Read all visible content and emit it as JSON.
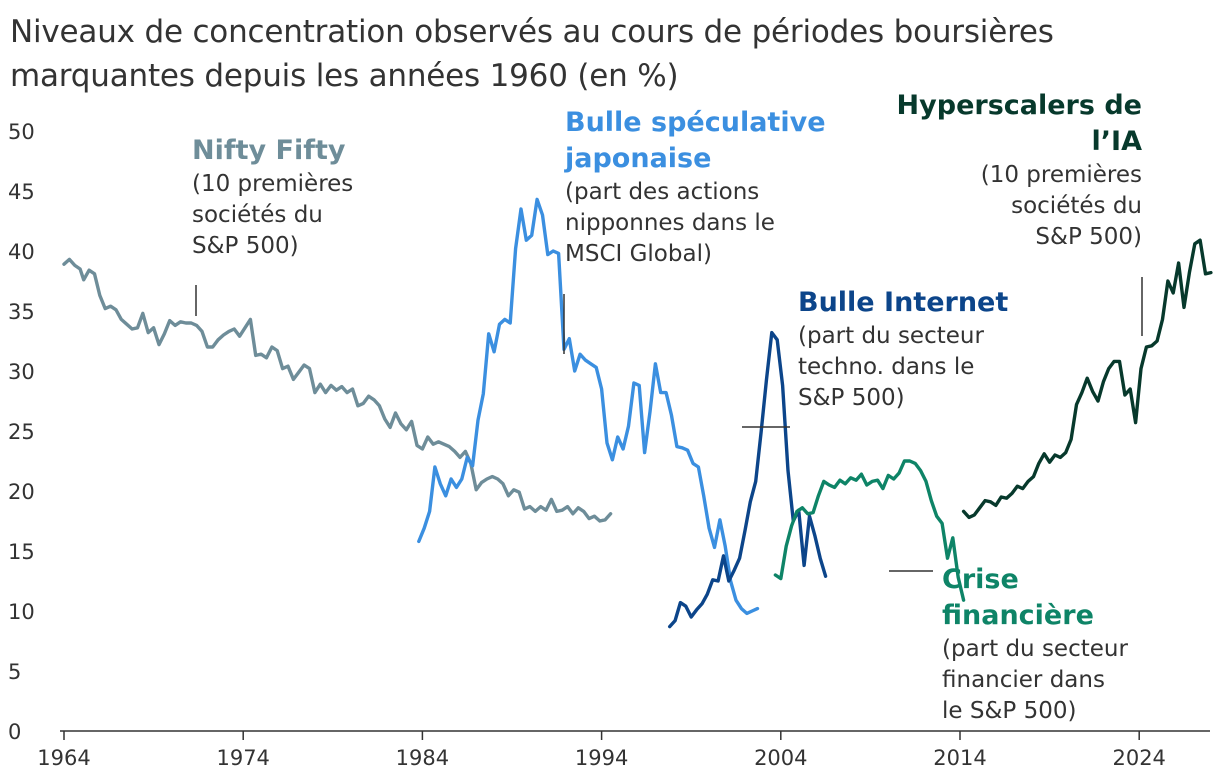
{
  "title_lines": [
    "Niveaux de concentration observés au cours de périodes boursières",
    "marquantes depuis les années 1960 (en %)"
  ],
  "chart_data": {
    "type": "line",
    "title": "Niveaux de concentration observés au cours de périodes boursières marquantes depuis les années 1960 (en %)",
    "xlabel": "",
    "ylabel": "",
    "xlim": [
      1964,
      2027
    ],
    "ylim": [
      0,
      50
    ],
    "x_ticks": [
      1964,
      1974,
      1984,
      1994,
      2004,
      2014,
      2024
    ],
    "y_ticks": [
      0,
      5,
      10,
      15,
      20,
      25,
      30,
      35,
      40,
      45,
      50
    ],
    "grid": false,
    "legend": "none",
    "series": [
      {
        "name": "Nifty Fifty",
        "description": "(10 premières sociétés du S&P 500)",
        "color": "#6e8d99",
        "points": [
          [
            1964.0,
            38.9
          ],
          [
            1964.3,
            39.3
          ],
          [
            1964.6,
            38.8
          ],
          [
            1964.9,
            38.5
          ],
          [
            1965.1,
            37.6
          ],
          [
            1965.4,
            38.4
          ],
          [
            1965.7,
            38.1
          ],
          [
            1966.0,
            36.3
          ],
          [
            1966.3,
            35.2
          ],
          [
            1966.6,
            35.4
          ],
          [
            1966.9,
            35.1
          ],
          [
            1967.2,
            34.3
          ],
          [
            1967.5,
            33.9
          ],
          [
            1967.8,
            33.5
          ],
          [
            1968.1,
            33.6
          ],
          [
            1968.4,
            34.8
          ],
          [
            1968.7,
            33.2
          ],
          [
            1969.0,
            33.6
          ],
          [
            1969.3,
            32.2
          ],
          [
            1969.6,
            33.1
          ],
          [
            1969.9,
            34.2
          ],
          [
            1970.2,
            33.8
          ],
          [
            1970.5,
            34.1
          ],
          [
            1970.8,
            34.0
          ],
          [
            1971.1,
            34.0
          ],
          [
            1971.4,
            33.8
          ],
          [
            1971.7,
            33.3
          ],
          [
            1972.0,
            32.0
          ],
          [
            1972.3,
            32.0
          ],
          [
            1972.6,
            32.6
          ],
          [
            1972.9,
            33.0
          ],
          [
            1973.2,
            33.3
          ],
          [
            1973.5,
            33.5
          ],
          [
            1973.8,
            32.9
          ],
          [
            1974.1,
            33.6
          ],
          [
            1974.4,
            34.3
          ],
          [
            1974.7,
            31.3
          ],
          [
            1975.0,
            31.4
          ],
          [
            1975.3,
            31.1
          ],
          [
            1975.6,
            32.0
          ],
          [
            1975.9,
            31.7
          ],
          [
            1976.2,
            30.2
          ],
          [
            1976.5,
            30.4
          ],
          [
            1976.8,
            29.3
          ],
          [
            1977.1,
            29.9
          ],
          [
            1977.4,
            30.5
          ],
          [
            1977.7,
            30.2
          ],
          [
            1978.0,
            28.2
          ],
          [
            1978.3,
            28.9
          ],
          [
            1978.6,
            28.2
          ],
          [
            1978.9,
            28.8
          ],
          [
            1979.2,
            28.4
          ],
          [
            1979.5,
            28.7
          ],
          [
            1979.8,
            28.2
          ],
          [
            1980.1,
            28.5
          ],
          [
            1980.4,
            27.1
          ],
          [
            1980.7,
            27.3
          ],
          [
            1981.0,
            27.9
          ],
          [
            1981.3,
            27.6
          ],
          [
            1981.6,
            27.1
          ],
          [
            1981.9,
            26.0
          ],
          [
            1982.2,
            25.3
          ],
          [
            1982.5,
            26.5
          ],
          [
            1982.8,
            25.6
          ],
          [
            1983.1,
            25.1
          ],
          [
            1983.4,
            25.8
          ],
          [
            1983.7,
            23.8
          ],
          [
            1984.0,
            23.5
          ],
          [
            1984.3,
            24.5
          ],
          [
            1984.6,
            23.9
          ],
          [
            1984.9,
            24.1
          ],
          [
            1985.2,
            23.9
          ],
          [
            1985.5,
            23.7
          ],
          [
            1985.8,
            23.3
          ],
          [
            1986.1,
            22.8
          ],
          [
            1986.4,
            23.3
          ],
          [
            1986.7,
            22.3
          ],
          [
            1987.0,
            20.1
          ],
          [
            1987.3,
            20.7
          ],
          [
            1987.6,
            21.0
          ],
          [
            1987.9,
            21.2
          ],
          [
            1988.2,
            21.0
          ],
          [
            1988.5,
            20.6
          ],
          [
            1988.8,
            19.6
          ],
          [
            1989.1,
            20.1
          ],
          [
            1989.4,
            19.9
          ],
          [
            1989.7,
            18.5
          ],
          [
            1990.0,
            18.7
          ],
          [
            1990.3,
            18.3
          ],
          [
            1990.6,
            18.7
          ],
          [
            1990.9,
            18.4
          ],
          [
            1991.2,
            19.3
          ],
          [
            1991.5,
            18.3
          ],
          [
            1991.8,
            18.4
          ],
          [
            1992.1,
            18.7
          ],
          [
            1992.4,
            18.1
          ],
          [
            1992.7,
            18.6
          ],
          [
            1993.0,
            18.3
          ],
          [
            1993.3,
            17.7
          ],
          [
            1993.6,
            17.9
          ],
          [
            1993.9,
            17.5
          ],
          [
            1994.2,
            17.6
          ],
          [
            1994.5,
            18.1
          ]
        ]
      },
      {
        "name": "Bulle spéculative japonaise",
        "description": "(part des actions nipponnes dans le MSCI Global)",
        "color": "#3b8fe0",
        "points": [
          [
            1983.8,
            15.8
          ],
          [
            1984.1,
            16.9
          ],
          [
            1984.4,
            18.3
          ],
          [
            1984.7,
            22.0
          ],
          [
            1985.0,
            20.6
          ],
          [
            1985.3,
            19.6
          ],
          [
            1985.6,
            21.0
          ],
          [
            1985.9,
            20.3
          ],
          [
            1986.2,
            21.0
          ],
          [
            1986.5,
            22.8
          ],
          [
            1986.8,
            22.1
          ],
          [
            1987.1,
            25.9
          ],
          [
            1987.4,
            28.1
          ],
          [
            1987.7,
            33.1
          ],
          [
            1988.0,
            31.6
          ],
          [
            1988.3,
            33.9
          ],
          [
            1988.6,
            34.3
          ],
          [
            1988.9,
            34.0
          ],
          [
            1989.2,
            40.2
          ],
          [
            1989.5,
            43.5
          ],
          [
            1989.8,
            40.9
          ],
          [
            1990.1,
            41.3
          ],
          [
            1990.4,
            44.3
          ],
          [
            1990.7,
            43.0
          ],
          [
            1991.0,
            39.7
          ],
          [
            1991.3,
            40.0
          ],
          [
            1991.6,
            39.8
          ],
          [
            1991.9,
            31.8
          ],
          [
            1992.2,
            32.7
          ],
          [
            1992.5,
            30.0
          ],
          [
            1992.8,
            31.4
          ],
          [
            1993.1,
            30.9
          ],
          [
            1993.4,
            30.6
          ],
          [
            1993.7,
            30.3
          ],
          [
            1994.0,
            28.5
          ],
          [
            1994.3,
            24.0
          ],
          [
            1994.6,
            22.6
          ],
          [
            1994.9,
            24.5
          ],
          [
            1995.2,
            23.5
          ],
          [
            1995.5,
            25.4
          ],
          [
            1995.8,
            29.0
          ],
          [
            1996.1,
            28.8
          ],
          [
            1996.4,
            23.2
          ],
          [
            1996.7,
            26.6
          ],
          [
            1997.0,
            30.6
          ],
          [
            1997.3,
            28.2
          ],
          [
            1997.6,
            28.2
          ],
          [
            1997.9,
            26.3
          ],
          [
            1998.2,
            23.7
          ],
          [
            1998.5,
            23.6
          ],
          [
            1998.8,
            23.4
          ],
          [
            1999.1,
            22.3
          ],
          [
            1999.4,
            22.0
          ],
          [
            1999.7,
            19.6
          ],
          [
            2000.0,
            16.9
          ],
          [
            2000.3,
            15.3
          ],
          [
            2000.6,
            17.6
          ],
          [
            2000.9,
            15.4
          ],
          [
            2001.2,
            12.5
          ],
          [
            2001.5,
            10.9
          ],
          [
            2001.8,
            10.2
          ],
          [
            2002.1,
            9.8
          ],
          [
            2002.4,
            10.0
          ],
          [
            2002.7,
            10.2
          ]
        ]
      },
      {
        "name": "Bulle Internet",
        "description": "(part du secteur techno. dans le S&P 500)",
        "color": "#0c458a",
        "points": [
          [
            1997.8,
            8.7
          ],
          [
            1998.1,
            9.2
          ],
          [
            1998.4,
            10.7
          ],
          [
            1998.7,
            10.4
          ],
          [
            1999.0,
            9.5
          ],
          [
            1999.3,
            10.1
          ],
          [
            1999.6,
            10.6
          ],
          [
            1999.9,
            11.4
          ],
          [
            2000.2,
            12.6
          ],
          [
            2000.5,
            12.5
          ],
          [
            2000.8,
            14.6
          ],
          [
            2001.1,
            12.5
          ],
          [
            2001.4,
            13.4
          ],
          [
            2001.7,
            14.4
          ],
          [
            2002.0,
            16.7
          ],
          [
            2002.3,
            19.1
          ],
          [
            2002.6,
            20.8
          ],
          [
            2002.9,
            24.9
          ],
          [
            2003.2,
            29.3
          ],
          [
            2003.5,
            33.2
          ],
          [
            2003.8,
            32.6
          ],
          [
            2004.1,
            28.8
          ],
          [
            2004.4,
            21.7
          ],
          [
            2004.7,
            17.5
          ],
          [
            2005.0,
            18.4
          ],
          [
            2005.3,
            13.8
          ],
          [
            2005.6,
            17.9
          ],
          [
            2005.9,
            16.3
          ],
          [
            2006.2,
            14.4
          ],
          [
            2006.5,
            12.9
          ]
        ]
      },
      {
        "name": "Crise financière",
        "description": "(part du secteur financier dans le S&P 500)",
        "color": "#0e8467",
        "points": [
          [
            2003.7,
            13.0
          ],
          [
            2004.0,
            12.7
          ],
          [
            2004.3,
            15.4
          ],
          [
            2004.6,
            17.1
          ],
          [
            2004.9,
            18.3
          ],
          [
            2005.2,
            18.6
          ],
          [
            2005.5,
            18.1
          ],
          [
            2005.8,
            18.2
          ],
          [
            2006.1,
            19.6
          ],
          [
            2006.4,
            20.8
          ],
          [
            2006.7,
            20.5
          ],
          [
            2007.0,
            20.3
          ],
          [
            2007.3,
            20.9
          ],
          [
            2007.6,
            20.6
          ],
          [
            2007.9,
            21.1
          ],
          [
            2008.2,
            20.9
          ],
          [
            2008.5,
            21.4
          ],
          [
            2008.8,
            20.5
          ],
          [
            2009.1,
            20.8
          ],
          [
            2009.4,
            20.9
          ],
          [
            2009.7,
            20.2
          ],
          [
            2010.0,
            21.3
          ],
          [
            2010.3,
            21.0
          ],
          [
            2010.6,
            21.5
          ],
          [
            2010.9,
            22.5
          ],
          [
            2011.2,
            22.5
          ],
          [
            2011.5,
            22.3
          ],
          [
            2011.8,
            21.7
          ],
          [
            2012.1,
            20.8
          ],
          [
            2012.4,
            19.2
          ],
          [
            2012.7,
            17.9
          ],
          [
            2013.0,
            17.3
          ],
          [
            2013.3,
            14.4
          ],
          [
            2013.6,
            16.1
          ],
          [
            2013.9,
            12.8
          ],
          [
            2014.2,
            10.9
          ]
        ]
      },
      {
        "name": "Hyperscalers de l’IA",
        "description": "(10 premières sociétés du S&P 500)",
        "color": "#07392c",
        "points": [
          [
            2014.2,
            18.3
          ],
          [
            2014.5,
            17.8
          ],
          [
            2014.8,
            18.0
          ],
          [
            2015.1,
            18.6
          ],
          [
            2015.4,
            19.2
          ],
          [
            2015.7,
            19.1
          ],
          [
            2016.0,
            18.8
          ],
          [
            2016.3,
            19.5
          ],
          [
            2016.6,
            19.4
          ],
          [
            2016.9,
            19.8
          ],
          [
            2017.2,
            20.4
          ],
          [
            2017.5,
            20.2
          ],
          [
            2017.8,
            20.8
          ],
          [
            2018.1,
            21.2
          ],
          [
            2018.4,
            22.3
          ],
          [
            2018.7,
            23.1
          ],
          [
            2019.0,
            22.4
          ],
          [
            2019.3,
            23.0
          ],
          [
            2019.6,
            22.8
          ],
          [
            2019.9,
            23.2
          ],
          [
            2020.2,
            24.3
          ],
          [
            2020.5,
            27.2
          ],
          [
            2020.8,
            28.2
          ],
          [
            2021.1,
            29.4
          ],
          [
            2021.4,
            28.3
          ],
          [
            2021.7,
            27.5
          ],
          [
            2022.0,
            29.1
          ],
          [
            2022.3,
            30.2
          ],
          [
            2022.6,
            30.8
          ],
          [
            2022.9,
            30.8
          ],
          [
            2023.2,
            28.0
          ],
          [
            2023.5,
            28.5
          ],
          [
            2023.8,
            25.7
          ],
          [
            2024.1,
            30.2
          ],
          [
            2024.4,
            32.0
          ],
          [
            2024.7,
            32.1
          ],
          [
            2025.0,
            32.5
          ],
          [
            2025.3,
            34.3
          ],
          [
            2025.6,
            37.5
          ],
          [
            2025.9,
            36.5
          ],
          [
            2026.2,
            39.0
          ],
          [
            2026.5,
            35.3
          ],
          [
            2026.8,
            38.2
          ],
          [
            2027.1,
            40.6
          ],
          [
            2027.4,
            40.9
          ],
          [
            2027.7,
            38.1
          ],
          [
            2028.0,
            38.2
          ]
        ]
      }
    ]
  },
  "annotations": {
    "nifty": {
      "title": "Nifty Fifty",
      "desc": [
        "(10 premières",
        "sociétés du",
        "S&P 500)"
      ]
    },
    "japon": {
      "title": [
        "Bulle spéculative",
        "japonaise"
      ],
      "desc": [
        "(part des actions",
        "nipponnes dans le",
        "MSCI Global)"
      ]
    },
    "internet": {
      "title": "Bulle Internet",
      "desc": [
        "(part du secteur",
        "techno. dans le",
        "S&P 500)"
      ]
    },
    "crise": {
      "title": [
        "Crise",
        "financière"
      ],
      "desc": [
        "(part du secteur",
        "financier dans",
        "le S&P 500)"
      ]
    },
    "ia": {
      "title": [
        "Hyperscalers de",
        "l’IA"
      ],
      "desc": [
        "(10 premières",
        "sociétés du",
        "S&P 500)"
      ]
    }
  }
}
